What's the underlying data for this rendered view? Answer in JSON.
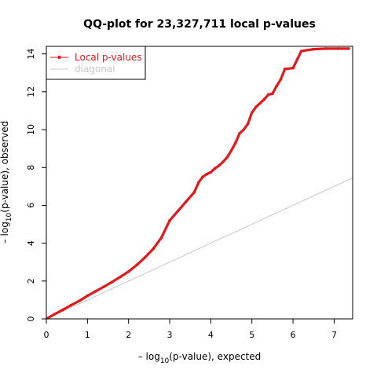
{
  "chart_data": {
    "type": "scatter",
    "title": "QQ-plot for 23,327,711 local p-values",
    "xlabel": {
      "prefix": "– log",
      "sub": "10",
      "suffix": "(p-value), expected"
    },
    "ylabel": {
      "prefix": "– log",
      "sub": "10",
      "suffix": "(p-value), observed"
    },
    "xlim": [
      0,
      7.45
    ],
    "ylim": [
      0,
      14.4
    ],
    "x_ticks": [
      0,
      1,
      2,
      3,
      4,
      5,
      6,
      7
    ],
    "y_ticks": [
      0,
      2,
      4,
      6,
      8,
      10,
      12,
      14
    ],
    "grid": false,
    "legend": {
      "placement": "top-left",
      "entries": [
        {
          "label": "Local p-values",
          "color": "#e31a1c",
          "style": "line-point"
        },
        {
          "label": "diagonal",
          "color": "#c8c8c8",
          "style": "line"
        }
      ]
    },
    "series": [
      {
        "name": "Local p-values",
        "color": "#e31a1c",
        "points": [
          [
            0.0,
            0.0
          ],
          [
            0.2,
            0.25
          ],
          [
            0.4,
            0.48
          ],
          [
            0.6,
            0.72
          ],
          [
            0.8,
            0.95
          ],
          [
            1.0,
            1.22
          ],
          [
            1.2,
            1.46
          ],
          [
            1.4,
            1.7
          ],
          [
            1.6,
            1.95
          ],
          [
            1.8,
            2.22
          ],
          [
            2.0,
            2.5
          ],
          [
            2.2,
            2.85
          ],
          [
            2.4,
            3.25
          ],
          [
            2.6,
            3.7
          ],
          [
            2.8,
            4.3
          ],
          [
            3.0,
            5.2
          ],
          [
            3.2,
            5.7
          ],
          [
            3.4,
            6.2
          ],
          [
            3.6,
            6.7
          ],
          [
            3.7,
            7.2
          ],
          [
            3.8,
            7.5
          ],
          [
            3.9,
            7.65
          ],
          [
            4.0,
            7.75
          ],
          [
            4.1,
            7.95
          ],
          [
            4.2,
            8.1
          ],
          [
            4.3,
            8.3
          ],
          [
            4.4,
            8.55
          ],
          [
            4.5,
            8.9
          ],
          [
            4.6,
            9.3
          ],
          [
            4.7,
            9.8
          ],
          [
            4.8,
            10.0
          ],
          [
            4.9,
            10.3
          ],
          [
            5.0,
            10.9
          ],
          [
            5.1,
            11.2
          ],
          [
            5.2,
            11.4
          ],
          [
            5.3,
            11.6
          ],
          [
            5.4,
            11.85
          ],
          [
            5.5,
            11.9
          ],
          [
            5.6,
            12.3
          ],
          [
            5.7,
            12.65
          ],
          [
            5.8,
            13.2
          ],
          [
            6.0,
            13.25
          ],
          [
            6.1,
            13.7
          ],
          [
            6.2,
            14.15
          ],
          [
            6.5,
            14.25
          ],
          [
            6.8,
            14.28
          ],
          [
            7.1,
            14.28
          ],
          [
            7.35,
            14.28
          ]
        ]
      },
      {
        "name": "diagonal",
        "color": "#c8c8c8",
        "points": [
          [
            0,
            0
          ],
          [
            7.45,
            7.45
          ]
        ]
      }
    ]
  }
}
